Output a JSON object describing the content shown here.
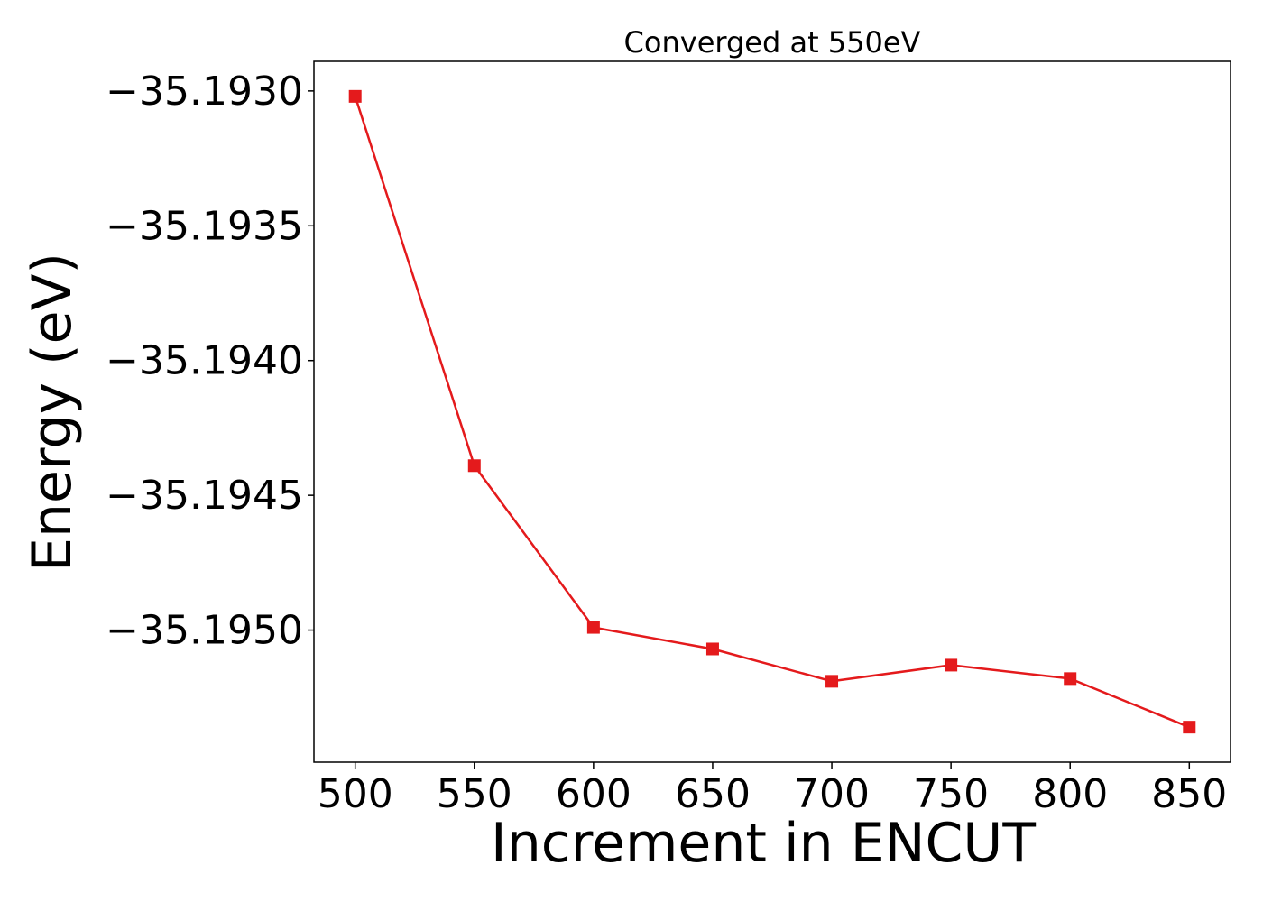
{
  "chart_data": {
    "type": "line",
    "title": "Converged at 550eV",
    "xlabel": "Increment in ENCUT",
    "ylabel": "Energy (eV)",
    "x": [
      500,
      550,
      600,
      650,
      700,
      750,
      800,
      850
    ],
    "xticks": [
      500,
      550,
      600,
      650,
      700,
      750,
      800,
      850
    ],
    "xtick_labels": [
      "500",
      "550",
      "600",
      "650",
      "700",
      "750",
      "800",
      "850"
    ],
    "yticks": [
      -35.193,
      -35.1935,
      -35.194,
      -35.1945,
      -35.195
    ],
    "ytick_labels": [
      "−35.1930",
      "−35.1935",
      "−35.1940",
      "−35.1945",
      "−35.1950"
    ],
    "xlim": [
      482.7,
      867.3
    ],
    "ylim": [
      -35.19549,
      -35.19289
    ],
    "series": [
      {
        "values": [
          -35.19302,
          -35.19439,
          -35.19499,
          -35.19507,
          -35.19519,
          -35.19513,
          -35.19518,
          -35.19536
        ],
        "color": "#e41a1c",
        "marker": "square"
      }
    ],
    "grid": false,
    "legend": "none"
  }
}
